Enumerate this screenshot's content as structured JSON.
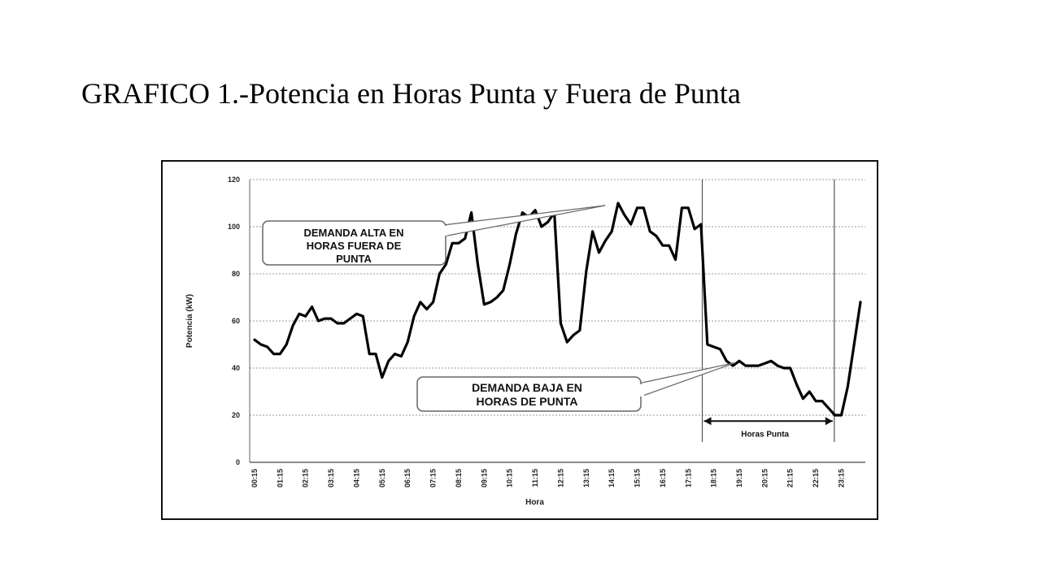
{
  "slide_title": "GRAFICO 1.-Potencia en Horas Punta y Fuera de Punta",
  "chart_data": {
    "type": "line",
    "title": "",
    "xlabel": "Hora",
    "ylabel": "Potencia (kW)",
    "ylim": [
      0,
      120
    ],
    "yticks": [
      0,
      20,
      40,
      60,
      80,
      100,
      120
    ],
    "grid": "horizontal-dashed",
    "x_tick_labels": [
      "00:15",
      "01:15",
      "02:15",
      "03:15",
      "04:15",
      "05:15",
      "06:15",
      "07:15",
      "08:15",
      "09:15",
      "10:15",
      "11:15",
      "12:15",
      "13:15",
      "14:15",
      "15:15",
      "16:15",
      "17:15",
      "18:15",
      "19:15",
      "20:15",
      "21:15",
      "22:15",
      "23:15"
    ],
    "x_index_range": [
      0,
      95
    ],
    "series": [
      {
        "name": "",
        "color": "#000000",
        "points": [
          [
            0,
            52
          ],
          [
            1,
            50
          ],
          [
            2,
            49
          ],
          [
            3,
            46
          ],
          [
            4,
            46
          ],
          [
            5,
            50
          ],
          [
            6,
            58
          ],
          [
            7,
            63
          ],
          [
            8,
            62
          ],
          [
            9,
            66
          ],
          [
            10,
            60
          ],
          [
            11,
            61
          ],
          [
            12,
            61
          ],
          [
            13,
            59
          ],
          [
            14,
            59
          ],
          [
            15,
            61
          ],
          [
            16,
            63
          ],
          [
            17,
            62
          ],
          [
            18,
            46
          ],
          [
            19,
            46
          ],
          [
            20,
            36
          ],
          [
            21,
            43
          ],
          [
            22,
            46
          ],
          [
            23,
            45
          ],
          [
            24,
            51
          ],
          [
            25,
            62
          ],
          [
            26,
            68
          ],
          [
            27,
            65
          ],
          [
            28,
            68
          ],
          [
            29,
            80
          ],
          [
            30,
            84
          ],
          [
            31,
            93
          ],
          [
            32,
            93
          ],
          [
            33,
            95
          ],
          [
            34,
            106
          ],
          [
            35,
            84
          ],
          [
            36,
            67
          ],
          [
            37,
            68
          ],
          [
            38,
            70
          ],
          [
            39,
            73
          ],
          [
            40,
            84
          ],
          [
            41,
            97
          ],
          [
            42,
            106
          ],
          [
            43,
            104
          ],
          [
            44,
            107
          ],
          [
            45,
            100
          ],
          [
            46,
            102
          ],
          [
            47,
            106
          ],
          [
            48,
            59
          ],
          [
            49,
            51
          ],
          [
            50,
            54
          ],
          [
            51,
            56
          ],
          [
            52,
            81
          ],
          [
            53,
            98
          ],
          [
            54,
            89
          ],
          [
            55,
            94
          ],
          [
            56,
            98
          ],
          [
            57,
            110
          ],
          [
            58,
            105
          ],
          [
            59,
            101
          ],
          [
            60,
            108
          ],
          [
            61,
            108
          ],
          [
            62,
            98
          ],
          [
            63,
            96
          ],
          [
            64,
            92
          ],
          [
            65,
            92
          ],
          [
            66,
            86
          ],
          [
            67,
            108
          ],
          [
            68,
            108
          ],
          [
            69,
            99
          ],
          [
            70,
            101
          ],
          [
            71,
            50
          ],
          [
            72,
            49
          ],
          [
            73,
            48
          ],
          [
            74,
            43
          ],
          [
            75,
            41
          ],
          [
            76,
            43
          ],
          [
            77,
            41
          ],
          [
            78,
            41
          ],
          [
            79,
            41
          ],
          [
            80,
            42
          ],
          [
            81,
            43
          ],
          [
            82,
            41
          ],
          [
            83,
            40
          ],
          [
            84,
            40
          ],
          [
            85,
            33
          ],
          [
            86,
            27
          ],
          [
            87,
            30
          ],
          [
            88,
            26
          ],
          [
            89,
            26
          ],
          [
            90,
            23
          ],
          [
            91,
            20
          ],
          [
            92,
            20
          ],
          [
            93,
            32
          ],
          [
            94,
            50
          ],
          [
            95,
            68
          ]
        ]
      }
    ],
    "annotations": {
      "callout_high": {
        "lines": [
          "DEMANDA ALTA EN",
          "HORAS FUERA DE",
          "PUNTA"
        ],
        "pointer_x": 55,
        "pointer_y": 109
      },
      "callout_low": {
        "lines": [
          "DEMANDA BAJA EN",
          "HORAS DE PUNTA"
        ],
        "pointer_x": 79,
        "pointer_y": 43
      },
      "peak_span": {
        "label": "Horas Punta",
        "start_x": 71,
        "end_x": 90,
        "arrow_y": 13
      }
    }
  }
}
